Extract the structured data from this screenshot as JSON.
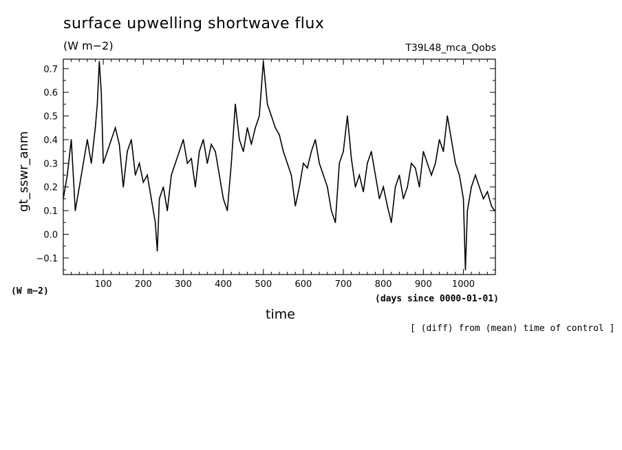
{
  "chart_data": {
    "type": "line",
    "title": "surface upwelling shortwave flux",
    "units": "(W m−2)",
    "run_label": "T39L48_mca_Qobs",
    "ylabel": "gt_sswr_anm",
    "yunits": "(W m−2)",
    "xlabel": "time",
    "xunits": "(days since 0000-01-01)",
    "note": "[ (diff) from (mean) time of control ]",
    "xlim": [
      0,
      1080
    ],
    "ylim": [
      -0.17,
      0.74
    ],
    "x_ticks": [
      100,
      200,
      300,
      400,
      500,
      600,
      700,
      800,
      900,
      1000
    ],
    "y_ticks": [
      -0.1,
      0.0,
      0.1,
      0.2,
      0.3,
      0.4,
      0.5,
      0.6,
      0.7
    ],
    "y_tick_labels": [
      "−0.1",
      "0.0",
      "0.1",
      "0.2",
      "0.3",
      "0.4",
      "0.5",
      "0.6",
      "0.7"
    ],
    "grid": false,
    "series": [
      {
        "x": [
          0,
          10,
          20,
          30,
          40,
          50,
          60,
          70,
          80,
          85,
          90,
          95,
          100,
          110,
          120,
          130,
          140,
          150,
          160,
          170,
          180,
          190,
          200,
          210,
          220,
          230,
          235,
          240,
          250,
          260,
          270,
          280,
          290,
          300,
          310,
          320,
          330,
          340,
          350,
          360,
          370,
          380,
          390,
          400,
          410,
          420,
          430,
          440,
          450,
          460,
          470,
          480,
          490,
          500,
          510,
          520,
          530,
          540,
          550,
          560,
          570,
          580,
          590,
          600,
          610,
          620,
          630,
          640,
          650,
          660,
          670,
          680,
          690,
          700,
          710,
          720,
          730,
          740,
          750,
          760,
          770,
          780,
          790,
          800,
          810,
          820,
          830,
          840,
          850,
          860,
          870,
          880,
          890,
          900,
          910,
          920,
          930,
          940,
          950,
          960,
          970,
          980,
          990,
          1000,
          1005,
          1010,
          1020,
          1030,
          1040,
          1050,
          1060,
          1070,
          1078
        ],
        "y": [
          0.15,
          0.25,
          0.4,
          0.1,
          0.2,
          0.3,
          0.4,
          0.3,
          0.45,
          0.55,
          0.73,
          0.6,
          0.3,
          0.35,
          0.4,
          0.45,
          0.38,
          0.2,
          0.35,
          0.4,
          0.25,
          0.3,
          0.22,
          0.25,
          0.15,
          0.05,
          -0.07,
          0.15,
          0.2,
          0.1,
          0.25,
          0.3,
          0.35,
          0.4,
          0.3,
          0.32,
          0.2,
          0.35,
          0.4,
          0.3,
          0.38,
          0.35,
          0.25,
          0.15,
          0.1,
          0.3,
          0.55,
          0.4,
          0.35,
          0.45,
          0.38,
          0.45,
          0.5,
          0.73,
          0.55,
          0.5,
          0.45,
          0.42,
          0.35,
          0.3,
          0.25,
          0.12,
          0.2,
          0.3,
          0.28,
          0.35,
          0.4,
          0.3,
          0.25,
          0.2,
          0.1,
          0.05,
          0.3,
          0.35,
          0.5,
          0.32,
          0.2,
          0.25,
          0.18,
          0.3,
          0.35,
          0.25,
          0.15,
          0.2,
          0.12,
          0.05,
          0.2,
          0.25,
          0.15,
          0.2,
          0.3,
          0.28,
          0.2,
          0.35,
          0.3,
          0.25,
          0.3,
          0.4,
          0.35,
          0.5,
          0.4,
          0.3,
          0.25,
          0.15,
          -0.15,
          0.1,
          0.2,
          0.25,
          0.2,
          0.15,
          0.18,
          0.12,
          0.1
        ]
      }
    ]
  }
}
